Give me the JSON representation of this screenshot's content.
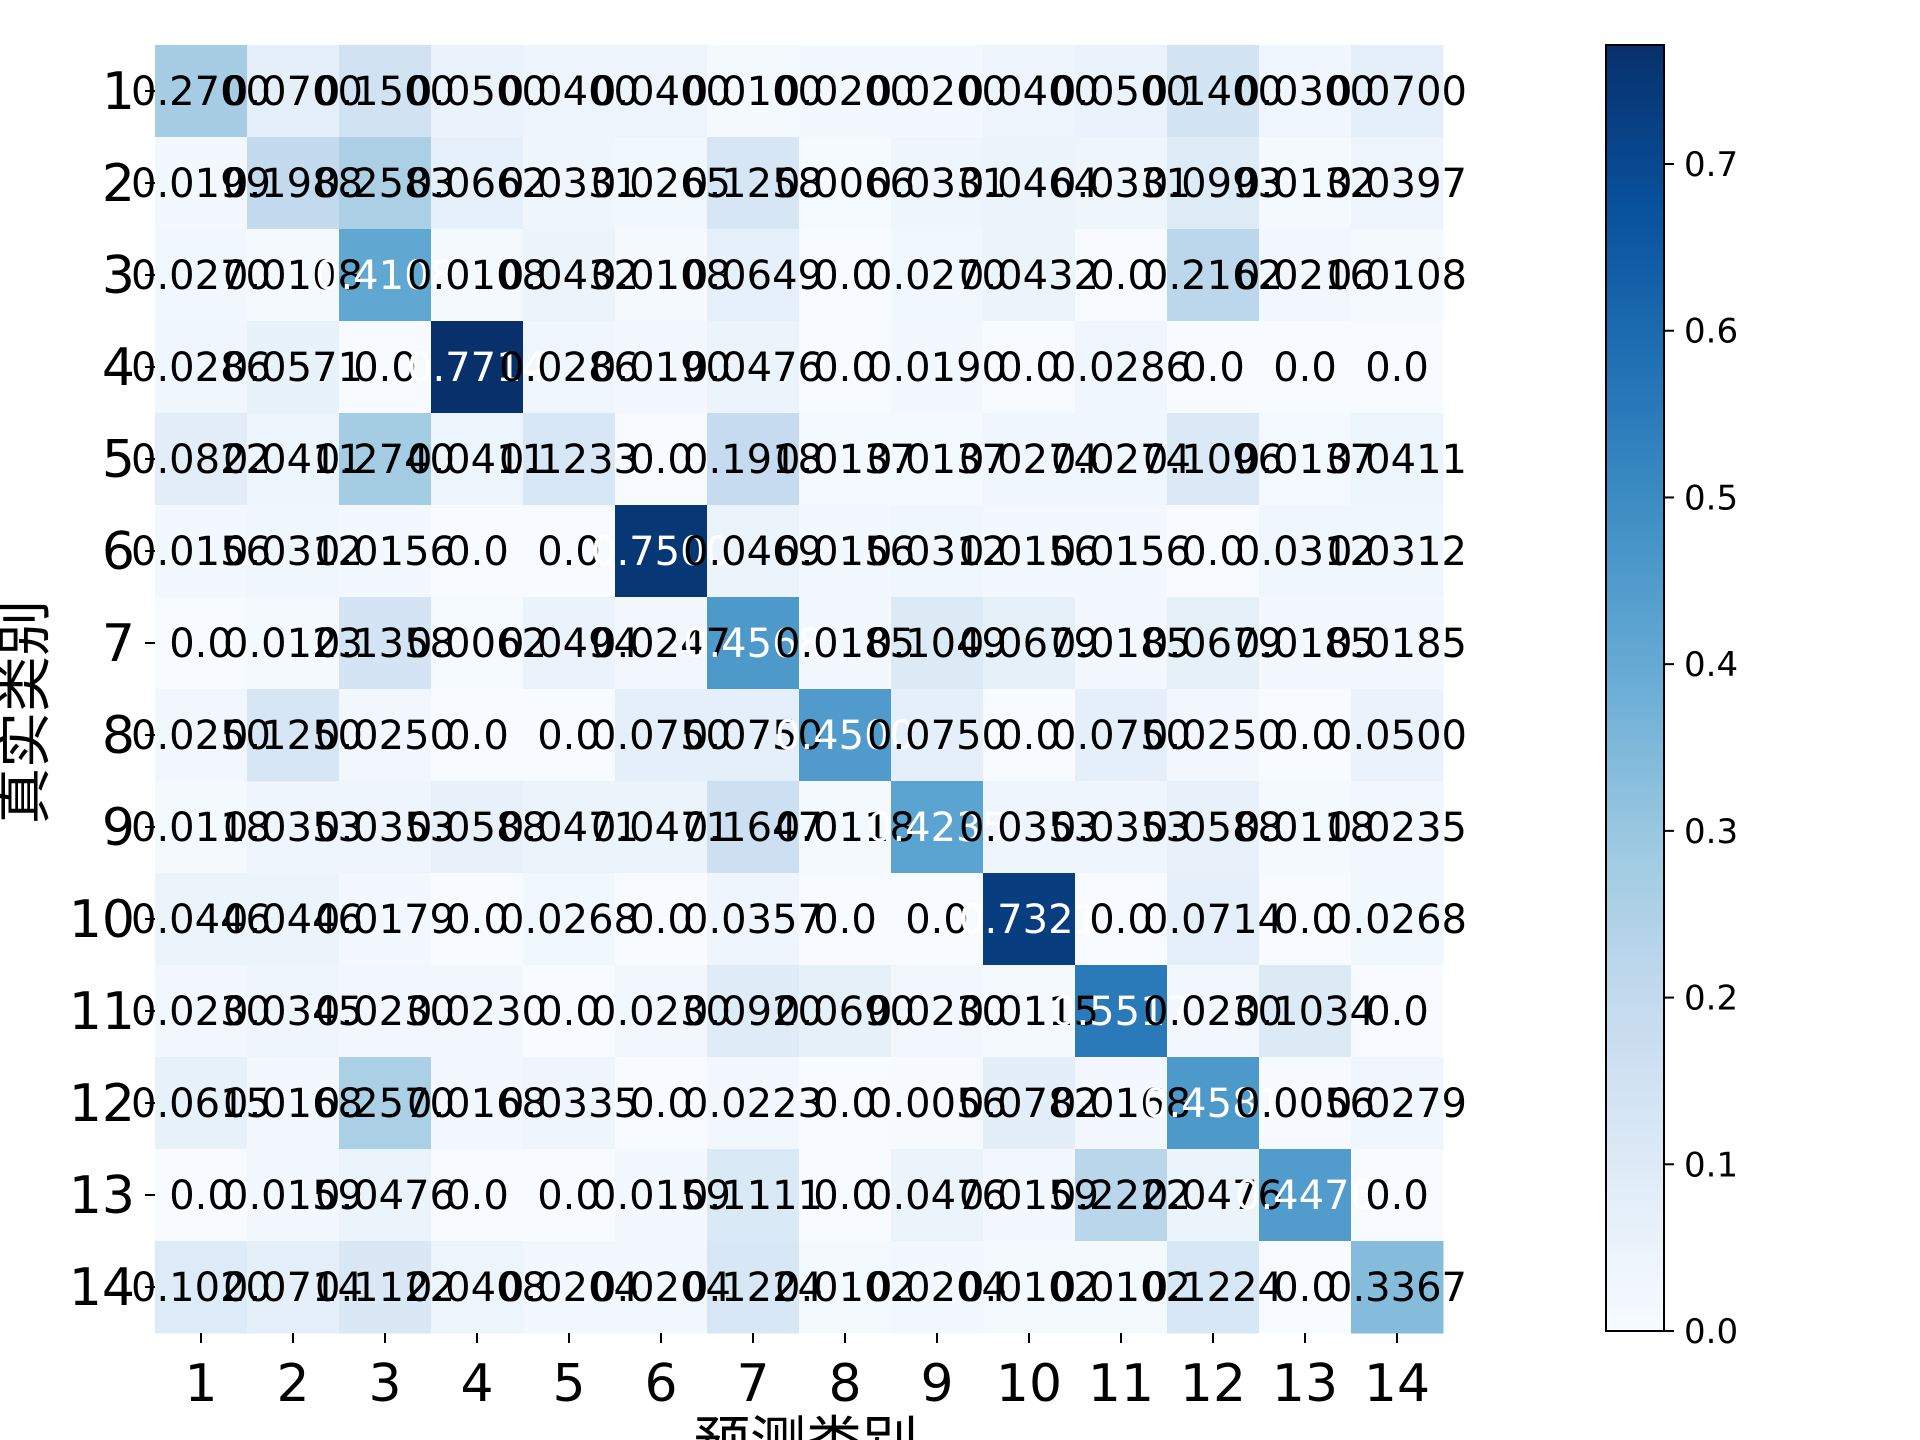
{
  "chart_data": {
    "type": "heatmap",
    "title": "",
    "xlabel": "预测类别",
    "ylabel": "真实类别",
    "x_categories": [
      "1",
      "2",
      "3",
      "4",
      "5",
      "6",
      "7",
      "8",
      "9",
      "10",
      "11",
      "12",
      "13",
      "14"
    ],
    "y_categories": [
      "1",
      "2",
      "3",
      "4",
      "5",
      "6",
      "7",
      "8",
      "9",
      "10",
      "11",
      "12",
      "13",
      "14"
    ],
    "cell_labels": [
      [
        "0.2700",
        "0.0700",
        "0.1500",
        "0.0500",
        "0.0400",
        "0.0400",
        "0.0100",
        "0.0200",
        "0.0200",
        "0.0400",
        "0.0500",
        "0.1400",
        "0.0300",
        "0.0700"
      ],
      [
        "0.0199",
        "0.1988",
        "0.2583",
        "0.0662",
        "0.0331",
        "0.0265",
        "0.1258",
        "0.0066",
        "0.0331",
        "0.0464",
        "0.0331",
        "0.0993",
        "0.0132",
        "0.0397"
      ],
      [
        "0.0270",
        "0.0108",
        "0.4108",
        "0.0108",
        "0.0432",
        "0.0108",
        "0.0649",
        "0.0",
        "0.0270",
        "0.0432",
        "0.0",
        "0.2162",
        "0.0216",
        "0.0108"
      ],
      [
        "0.0286",
        "0.0571",
        "0.0",
        "0.7714",
        "0.0286",
        "0.0190",
        "0.0476",
        "0.0",
        "0.0190",
        "0.0",
        "0.0286",
        "0.0",
        "0.0",
        "0.0"
      ],
      [
        "0.0822",
        "0.0411",
        "0.2740",
        "0.0411",
        "0.1233",
        "0.0",
        "0.1918",
        "0.0137",
        "0.0137",
        "0.0274",
        "0.0274",
        "0.1096",
        "0.0137",
        "0.0411"
      ],
      [
        "0.0156",
        "0.0312",
        "0.0156",
        "0.0",
        "0.0",
        "0.7500",
        "0.0469",
        "0.0156",
        "0.0312",
        "0.0156",
        "0.0156",
        "0.0",
        "0.0312",
        "0.0312"
      ],
      [
        "0.0",
        "0.0123",
        "0.1358",
        "0.0062",
        "0.0494",
        "0.0247",
        "0.4568",
        "0.0185",
        "0.1049",
        "0.0679",
        "0.0185",
        "0.0679",
        "0.0185",
        "0.0185"
      ],
      [
        "0.0250",
        "0.1250",
        "0.0250",
        "0.0",
        "0.0",
        "0.0750",
        "0.0750",
        "0.4500",
        "0.0750",
        "0.0",
        "0.0750",
        "0.0250",
        "0.0",
        "0.0500"
      ],
      [
        "0.0118",
        "0.0353",
        "0.0353",
        "0.0588",
        "0.0471",
        "0.0471",
        "0.1647",
        "0.0118",
        "0.4235",
        "0.0353",
        "0.0353",
        "0.0588",
        "0.0118",
        "0.0235"
      ],
      [
        "0.0446",
        "0.0446",
        "0.0179",
        "0.0",
        "0.0268",
        "0.0",
        "0.0357",
        "0.0",
        "0.0",
        "0.7321",
        "0.0",
        "0.0714",
        "0.0",
        "0.0268"
      ],
      [
        "0.0230",
        "0.0345",
        "0.0230",
        "0.0230",
        "0.0",
        "0.0230",
        "0.0920",
        "0.0690",
        "0.0230",
        "0.0115",
        "0.5517",
        "0.0230",
        "0.1034",
        "0.0"
      ],
      [
        "0.0615",
        "0.0168",
        "0.2570",
        "0.0168",
        "0.0335",
        "0.0",
        "0.0223",
        "0.0",
        "0.0056",
        "0.0782",
        "0.0168",
        "0.4581",
        "0.0056",
        "0.0279"
      ],
      [
        "0.0",
        "0.0159",
        "0.0476",
        "0.0",
        "0.0",
        "0.0159",
        "0.1111",
        "0.0",
        "0.0476",
        "0.0159",
        "0.2222",
        "0.0476",
        "0.4476",
        "0.0"
      ],
      [
        "0.1020",
        "0.0714",
        "0.1122",
        "0.0408",
        "0.0204",
        "0.0204",
        "0.1224",
        "0.0102",
        "0.0204",
        "0.0102",
        "0.0102",
        "0.1224",
        "0.0",
        "0.3367"
      ]
    ],
    "zlim": [
      0.0,
      0.7714
    ],
    "colormap": "Blues",
    "colorbar_ticks": [
      "0.0",
      "0.1",
      "0.2",
      "0.3",
      "0.4",
      "0.5",
      "0.6",
      "0.7"
    ],
    "colors": {
      "scale": [
        "#f7fbff",
        "#deebf7",
        "#c6dbef",
        "#9ecae1",
        "#6baed6",
        "#4292c6",
        "#2171b5",
        "#08519c",
        "#08306b"
      ],
      "text_dark": "#000000",
      "text_light": "#ffffff"
    }
  }
}
